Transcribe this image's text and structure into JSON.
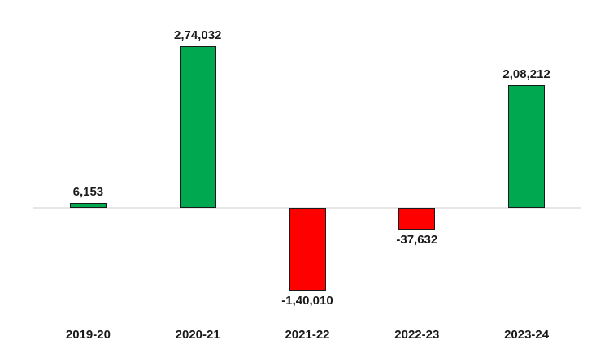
{
  "chart_data": {
    "type": "bar",
    "title": "",
    "xlabel": "",
    "ylabel": "",
    "categories": [
      "2019-20",
      "2020-21",
      "2021-22",
      "2022-23",
      "2023-24"
    ],
    "values": [
      6153,
      274032,
      -140010,
      -37632,
      208212
    ],
    "value_labels": [
      "6,153",
      "2,74,032",
      "-1,40,010",
      "-37,632",
      "2,08,212"
    ],
    "ylim": [
      -264000,
      356000
    ],
    "baseline_value": 0,
    "grid": false,
    "legend": "none",
    "colors": {
      "positive": "#00A84F",
      "negative": "#FF0000",
      "bar_border": "#1A1A1A",
      "axis_line": "#E6E6E6",
      "label_text": "#1A1A1A"
    }
  }
}
